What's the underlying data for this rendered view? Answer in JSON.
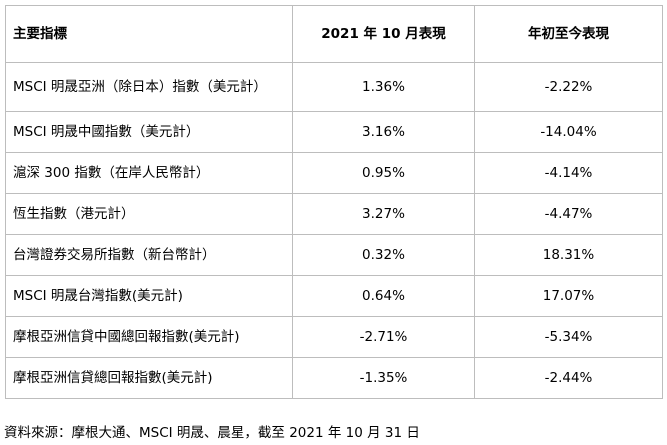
{
  "table": {
    "headers": [
      "主要指標",
      "2021 年 10 月表現",
      "年初至今表現"
    ],
    "rows": [
      {
        "name": "MSCI 明晟亞洲（除日本）指數（美元計）",
        "oct2021": "1.36%",
        "ytd": "-2.22%"
      },
      {
        "name": "MSCI 明晟中國指數（美元計）",
        "oct2021": "3.16%",
        "ytd": "-14.04%"
      },
      {
        "name": "滬深 300 指數（在岸人民幣計）",
        "oct2021": "0.95%",
        "ytd": "-4.14%"
      },
      {
        "name": "恆生指數（港元計）",
        "oct2021": "3.27%",
        "ytd": "-4.47%"
      },
      {
        "name": "台灣證券交易所指數（新台幣計）",
        "oct2021": "0.32%",
        "ytd": "18.31%"
      },
      {
        "name": "MSCI 明晟台灣指數(美元計)",
        "oct2021": "0.64%",
        "ytd": "17.07%"
      },
      {
        "name": "摩根亞洲信貸中國總回報指數(美元計)",
        "oct2021": "-2.71%",
        "ytd": "-5.34%"
      },
      {
        "name": "摩根亞洲信貸總回報指數(美元計)",
        "oct2021": "-1.35%",
        "ytd": "-2.44%"
      }
    ]
  },
  "source_note": "資料來源：摩根大通、MSCI 明晟、晨星，截至 2021 年 10 月 31 日"
}
